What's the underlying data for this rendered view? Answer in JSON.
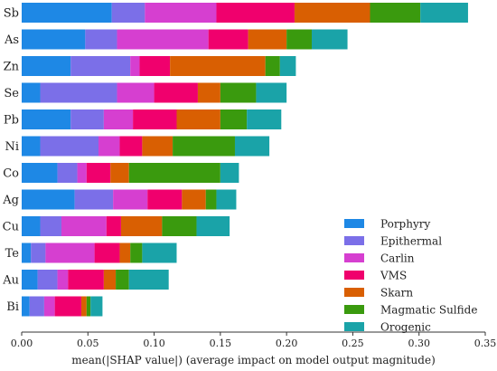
{
  "chart_data": {
    "type": "bar",
    "orientation": "horizontal",
    "stacked": true,
    "categories": [
      "Sb",
      "As",
      "Zn",
      "Se",
      "Pb",
      "Ni",
      "Co",
      "Ag",
      "Cu",
      "Te",
      "Au",
      "Bi"
    ],
    "series": [
      {
        "name": "Porphyry",
        "color": "#1e88e5",
        "values": [
          0.068,
          0.048,
          0.037,
          0.014,
          0.037,
          0.014,
          0.027,
          0.04,
          0.014,
          0.007,
          0.012,
          0.006
        ]
      },
      {
        "name": "Epithermal",
        "color": "#7b6fe8",
        "values": [
          0.025,
          0.024,
          0.045,
          0.058,
          0.025,
          0.044,
          0.015,
          0.029,
          0.016,
          0.011,
          0.015,
          0.011
        ]
      },
      {
        "name": "Carlin",
        "color": "#d63fd0",
        "values": [
          0.054,
          0.069,
          0.007,
          0.028,
          0.022,
          0.016,
          0.007,
          0.026,
          0.034,
          0.037,
          0.008,
          0.008
        ]
      },
      {
        "name": "VMS",
        "color": "#f0006d",
        "values": [
          0.059,
          0.03,
          0.023,
          0.033,
          0.033,
          0.017,
          0.018,
          0.026,
          0.011,
          0.019,
          0.027,
          0.02
        ]
      },
      {
        "name": "Skarn",
        "color": "#d95f02",
        "values": [
          0.057,
          0.029,
          0.072,
          0.017,
          0.033,
          0.023,
          0.014,
          0.018,
          0.031,
          0.008,
          0.009,
          0.004
        ]
      },
      {
        "name": "Magmatic Sulfide",
        "color": "#3a9a0e",
        "values": [
          0.038,
          0.019,
          0.011,
          0.027,
          0.02,
          0.047,
          0.069,
          0.008,
          0.026,
          0.009,
          0.01,
          0.003
        ]
      },
      {
        "name": "Orogenic",
        "color": "#1aa3a8",
        "values": [
          0.036,
          0.027,
          0.012,
          0.023,
          0.026,
          0.026,
          0.014,
          0.015,
          0.025,
          0.026,
          0.03,
          0.009
        ]
      }
    ],
    "xlabel": "mean(|SHAP value|) (average impact on model output magnitude)",
    "xlim": [
      0,
      0.35
    ],
    "xticks": [
      "0.00",
      "0.05",
      "0.10",
      "0.15",
      "0.20",
      "0.25",
      "0.30",
      "0.35"
    ],
    "legend_position": "bottom-right",
    "grid": false
  }
}
